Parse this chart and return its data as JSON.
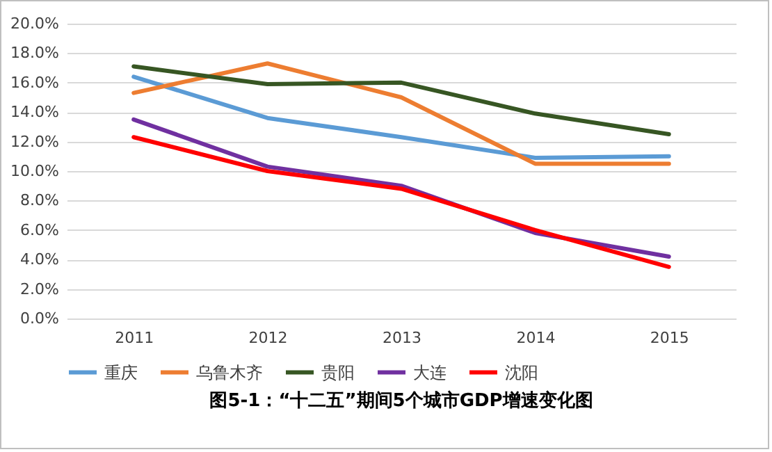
{
  "chart_data": {
    "type": "line",
    "title": "图5-1：“十二五”期间5个城市GDP增速变化图",
    "categories": [
      "2011",
      "2012",
      "2013",
      "2014",
      "2015"
    ],
    "series": [
      {
        "name": "重庆",
        "color": "#5b9bd5",
        "values": [
          16.4,
          13.6,
          12.3,
          10.9,
          11.0
        ]
      },
      {
        "name": "乌鲁木齐",
        "color": "#ed7d31",
        "values": [
          15.3,
          17.3,
          15.0,
          10.5,
          10.5
        ]
      },
      {
        "name": "贵阳",
        "color": "#375623",
        "values": [
          17.1,
          15.9,
          16.0,
          13.9,
          12.5
        ]
      },
      {
        "name": "大连",
        "color": "#7030a0",
        "values": [
          13.5,
          10.3,
          9.0,
          5.8,
          4.2
        ]
      },
      {
        "name": "沈阳",
        "color": "#ff0000",
        "values": [
          12.3,
          10.0,
          8.8,
          6.0,
          3.5
        ]
      }
    ],
    "ylim": [
      0,
      20
    ],
    "yticks": [
      {
        "value": 0,
        "label": "0.0%"
      },
      {
        "value": 2,
        "label": "2.0%"
      },
      {
        "value": 4,
        "label": "4.0%"
      },
      {
        "value": 6,
        "label": "6.0%"
      },
      {
        "value": 8,
        "label": "8.0%"
      },
      {
        "value": 10,
        "label": "10.0%"
      },
      {
        "value": 12,
        "label": "12.0%"
      },
      {
        "value": 14,
        "label": "14.0%"
      },
      {
        "value": 16,
        "label": "16.0%"
      },
      {
        "value": 18,
        "label": "18.0%"
      },
      {
        "value": 20,
        "label": "20.0%"
      }
    ],
    "grid": "y",
    "legend": "bottom"
  }
}
